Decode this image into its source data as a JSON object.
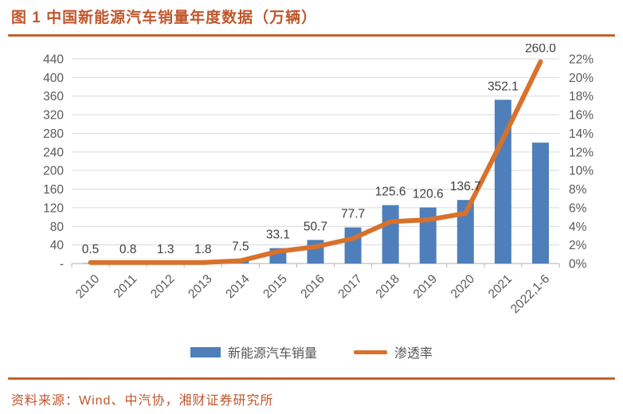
{
  "figure": {
    "title": "图 1  中国新能源汽车销量年度数据（万辆）",
    "source": "资料来源：Wind、中汽协，湘财证券研究所"
  },
  "colors": {
    "accent_text": "#c0562b",
    "divider": "#c2632b",
    "bar": "#4e7fba",
    "line": "#d9712b",
    "grid": "#d9d9d9",
    "axis": "#bfbfbf",
    "axis_text": "#595959",
    "data_label": "#404040"
  },
  "chart_data": {
    "type": "combo",
    "title": "中国新能源汽车销量年度数据（万辆）",
    "categories": [
      "2010",
      "2011",
      "2012",
      "2013",
      "2014",
      "2015",
      "2016",
      "2017",
      "2018",
      "2019",
      "2020",
      "2021",
      "2022,1-6"
    ],
    "series": [
      {
        "name": "新能源汽车销量",
        "type": "bar",
        "axis": "left",
        "color": "#4e7fba",
        "values": [
          0.5,
          0.8,
          1.3,
          1.8,
          7.5,
          33.1,
          50.7,
          77.7,
          125.6,
          120.6,
          136.7,
          352.1,
          260.0
        ],
        "labels": [
          "0.5",
          "0.8",
          "1.3",
          "1.8",
          "7.5",
          "33.1",
          "50.7",
          "77.7",
          "125.6",
          "120.6",
          "136.7",
          "352.1",
          "260.0"
        ]
      },
      {
        "name": "渗透率",
        "type": "line",
        "axis": "right",
        "color": "#d9712b",
        "values": [
          0.1,
          0.1,
          0.1,
          0.1,
          0.3,
          1.3,
          1.8,
          2.7,
          4.5,
          4.7,
          5.4,
          13.4,
          21.7
        ]
      }
    ],
    "left_axis": {
      "min": 0,
      "max": 440,
      "step": 40,
      "tick_labels": [
        "-",
        "40",
        "80",
        "120",
        "160",
        "200",
        "240",
        "280",
        "320",
        "360",
        "400",
        "440"
      ]
    },
    "right_axis": {
      "min": 0,
      "max": 22,
      "step": 2,
      "tick_labels": [
        "0%",
        "2%",
        "4%",
        "6%",
        "8%",
        "10%",
        "12%",
        "14%",
        "16%",
        "18%",
        "20%",
        "22%"
      ]
    },
    "grid": true,
    "legend_position": "bottom"
  }
}
